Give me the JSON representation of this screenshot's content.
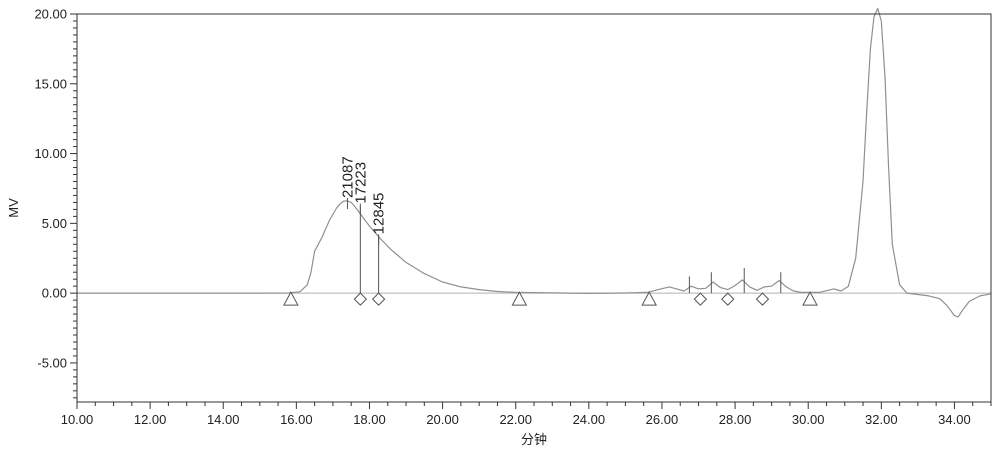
{
  "chart_data": {
    "type": "line",
    "xlabel": "分钟",
    "ylabel": "MV",
    "xlim": [
      10,
      35
    ],
    "ylim": [
      -7.8,
      20
    ],
    "x_ticks": [
      "10.00",
      "12.00",
      "14.00",
      "16.00",
      "18.00",
      "20.00",
      "22.00",
      "24.00",
      "26.00",
      "28.00",
      "30.00",
      "32.00",
      "34.00"
    ],
    "y_ticks": [
      "-5.00",
      "0.00",
      "5.00",
      "10.00",
      "15.00",
      "20.00"
    ],
    "grid": false,
    "colors": {
      "trace": "#909090",
      "marker": "#555555",
      "frame": "#333333",
      "text": "#222222"
    },
    "series": [
      {
        "x": [
          10,
          12,
          14,
          15,
          15.8,
          16.1,
          16.3,
          16.4,
          16.5,
          16.7,
          16.9,
          17.1,
          17.2,
          17.3,
          17.4,
          17.5,
          17.6,
          17.8,
          18.0,
          18.3,
          18.6,
          19.0,
          19.5,
          20.0,
          20.5,
          21.0,
          21.5,
          22.0,
          23,
          24,
          25,
          25.6,
          25.9,
          26.2,
          26.4,
          26.6,
          26.8,
          27.0,
          27.2,
          27.4,
          27.6,
          27.8,
          28.0,
          28.2,
          28.4,
          28.6,
          28.8,
          29.0,
          29.2,
          29.4,
          29.6,
          29.8,
          30.0,
          30.3,
          30.7,
          30.9,
          31.1,
          31.3,
          31.5,
          31.6,
          31.7,
          31.8,
          31.9,
          32.0,
          32.1,
          32.2,
          32.3,
          32.5,
          32.7,
          33.0,
          33.3,
          33.6,
          33.8,
          34.0,
          34.1,
          34.2,
          34.4,
          34.7,
          35
        ],
        "y": [
          0,
          0,
          0,
          0,
          0.01,
          0.1,
          0.6,
          1.5,
          3.0,
          4.0,
          5.2,
          6.1,
          6.4,
          6.6,
          6.6,
          6.5,
          6.2,
          5.5,
          4.8,
          3.9,
          3.1,
          2.2,
          1.4,
          0.8,
          0.45,
          0.25,
          0.12,
          0.05,
          0.02,
          -0.02,
          0.01,
          0.05,
          0.25,
          0.45,
          0.3,
          0.15,
          0.5,
          0.3,
          0.35,
          0.8,
          0.4,
          0.25,
          0.55,
          0.95,
          0.45,
          0.2,
          0.45,
          0.5,
          0.9,
          0.45,
          0.15,
          0.05,
          0.05,
          0.05,
          0.3,
          0.15,
          0.5,
          2.5,
          8.0,
          13.0,
          17.5,
          19.8,
          20.4,
          19.5,
          15.5,
          9.0,
          3.5,
          0.6,
          0.0,
          -0.1,
          -0.2,
          -0.4,
          -0.9,
          -1.6,
          -1.7,
          -1.3,
          -0.6,
          -0.2,
          -0.05
        ]
      }
    ],
    "peak_labels": [
      {
        "text": "21087",
        "x": 17.4,
        "y": 6.6
      },
      {
        "text": "17223",
        "x": 17.75,
        "y": 6.2
      },
      {
        "text": "12845",
        "x": 18.25,
        "y": 4.0
      }
    ],
    "drop_lines": [
      {
        "x": 17.75,
        "y_top": 6.2
      },
      {
        "x": 18.25,
        "y_top": 4.0
      },
      {
        "x": 26.75,
        "y_top": 1.2
      },
      {
        "x": 27.35,
        "y_top": 1.5
      },
      {
        "x": 28.25,
        "y_top": 1.8
      },
      {
        "x": 29.25,
        "y_top": 1.5
      }
    ],
    "baseline_triangles": [
      15.85,
      22.1,
      25.65,
      30.05
    ],
    "baseline_diamonds": [
      17.75,
      18.25,
      27.05,
      27.8,
      28.75
    ]
  }
}
